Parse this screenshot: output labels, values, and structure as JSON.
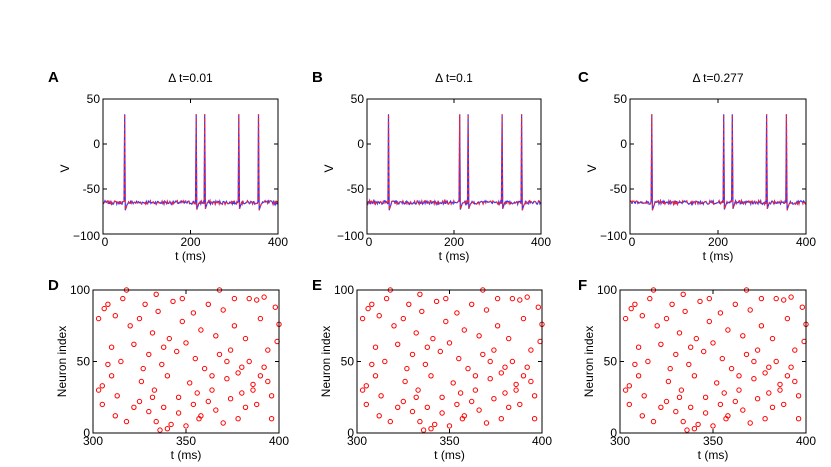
{
  "figure": {
    "panel_labels": [
      "A",
      "B",
      "C",
      "D",
      "E",
      "F"
    ]
  },
  "chart_data": [
    {
      "id": "A",
      "type": "line",
      "title": "Δ t=0.01",
      "xlabel": "t (ms)",
      "ylabel": "V",
      "xlim": [
        0,
        400
      ],
      "ylim": [
        -100,
        50
      ],
      "xticks": [
        "0",
        "200",
        "400"
      ],
      "yticks": [
        "50",
        "0",
        "-50",
        "−100"
      ],
      "legend": "none",
      "series": [
        {
          "name": "blue trace",
          "color": "#3333ff",
          "style": "solid",
          "spike_times": [
            50,
            213,
            232,
            310,
            356
          ]
        },
        {
          "name": "red trace",
          "color": "#ff2222",
          "style": "dashed",
          "spike_times": [
            50,
            213,
            232,
            310,
            356
          ]
        }
      ],
      "baseline": -65,
      "spike_peak": 33
    },
    {
      "id": "B",
      "type": "line",
      "title": "Δ t=0.1",
      "xlabel": "t (ms)",
      "ylabel": "V",
      "xlim": [
        0,
        400
      ],
      "ylim": [
        -100,
        50
      ],
      "xticks": [
        "0",
        "200",
        "400"
      ],
      "yticks": [
        "50",
        "0",
        "-50",
        "−100"
      ],
      "legend": "none",
      "series": [
        {
          "name": "blue trace",
          "color": "#3333ff",
          "style": "solid",
          "spike_times": [
            50,
            213,
            232,
            310,
            356
          ]
        },
        {
          "name": "red trace",
          "color": "#ff2222",
          "style": "dashed",
          "spike_times": [
            50,
            213,
            232,
            310,
            356
          ]
        }
      ],
      "baseline": -65,
      "spike_peak": 33
    },
    {
      "id": "C",
      "type": "line",
      "title": "Δ t=0.277",
      "xlabel": "t (ms)",
      "ylabel": "V",
      "xlim": [
        0,
        400
      ],
      "ylim": [
        -100,
        50
      ],
      "xticks": [
        "0",
        "200",
        "400"
      ],
      "yticks": [
        "50",
        "0",
        "-50",
        "−100"
      ],
      "legend": "none",
      "series": [
        {
          "name": "blue trace",
          "color": "#3333ff",
          "style": "solid",
          "spike_times": [
            50,
            213,
            232,
            310,
            356
          ]
        },
        {
          "name": "red trace",
          "color": "#ff2222",
          "style": "dashed",
          "spike_times": [
            50,
            213,
            232,
            310,
            356
          ]
        }
      ],
      "baseline": -65,
      "spike_peak": 33
    },
    {
      "id": "D",
      "type": "scatter",
      "xlabel": "t (ms)",
      "ylabel": "Neuron index",
      "xlim": [
        300,
        400
      ],
      "ylim": [
        0,
        100
      ],
      "xticks": [
        "300",
        "350",
        "400"
      ],
      "yticks": [
        "100",
        "50",
        "0"
      ],
      "marker": "open circle",
      "color": "#ff0000",
      "points": [
        [
          303,
          80
        ],
        [
          306,
          87
        ],
        [
          308,
          90
        ],
        [
          310,
          60
        ],
        [
          312,
          82
        ],
        [
          303,
          30
        ],
        [
          305,
          33
        ],
        [
          308,
          48
        ],
        [
          312,
          12
        ],
        [
          305,
          20
        ],
        [
          315,
          50
        ],
        [
          318,
          100
        ],
        [
          320,
          75
        ],
        [
          322,
          62
        ],
        [
          325,
          80
        ],
        [
          327,
          45
        ],
        [
          328,
          90
        ],
        [
          330,
          55
        ],
        [
          332,
          70
        ],
        [
          333,
          30
        ],
        [
          335,
          85
        ],
        [
          337,
          48
        ],
        [
          338,
          60
        ],
        [
          340,
          40
        ],
        [
          341,
          66
        ],
        [
          343,
          92
        ],
        [
          345,
          57
        ],
        [
          346,
          25
        ],
        [
          348,
          78
        ],
        [
          350,
          63
        ],
        [
          352,
          35
        ],
        [
          354,
          84
        ],
        [
          355,
          52
        ],
        [
          357,
          10
        ],
        [
          358,
          72
        ],
        [
          360,
          45
        ],
        [
          362,
          90
        ],
        [
          364,
          30
        ],
        [
          366,
          68
        ],
        [
          368,
          55
        ],
        [
          370,
          86
        ],
        [
          372,
          38
        ],
        [
          374,
          58
        ],
        [
          376,
          75
        ],
        [
          378,
          42
        ],
        [
          380,
          28
        ],
        [
          382,
          66
        ],
        [
          384,
          50
        ],
        [
          386,
          34
        ],
        [
          388,
          93
        ],
        [
          390,
          80
        ],
        [
          392,
          95
        ],
        [
          394,
          58
        ],
        [
          396,
          26
        ],
        [
          398,
          88
        ],
        [
          400,
          76
        ],
        [
          325,
          22
        ],
        [
          330,
          15
        ],
        [
          334,
          8
        ],
        [
          338,
          18
        ],
        [
          342,
          6
        ],
        [
          346,
          14
        ],
        [
          350,
          5
        ],
        [
          354,
          20
        ],
        [
          358,
          12
        ],
        [
          362,
          22
        ],
        [
          366,
          16
        ],
        [
          370,
          7
        ],
        [
          374,
          24
        ],
        [
          378,
          10
        ],
        [
          382,
          18
        ],
        [
          386,
          30
        ],
        [
          390,
          40
        ],
        [
          394,
          36
        ],
        [
          310,
          40
        ],
        [
          313,
          26
        ],
        [
          318,
          8
        ],
        [
          322,
          18
        ],
        [
          326,
          36
        ],
        [
          332,
          25
        ],
        [
          336,
          2
        ],
        [
          340,
          3
        ],
        [
          356,
          28
        ],
        [
          364,
          40
        ],
        [
          372,
          50
        ],
        [
          380,
          46
        ],
        [
          388,
          20
        ],
        [
          392,
          46
        ],
        [
          396,
          10
        ],
        [
          399,
          64
        ],
        [
          316,
          94
        ],
        [
          334,
          97
        ],
        [
          348,
          94
        ],
        [
          368,
          100
        ],
        [
          376,
          94
        ],
        [
          384,
          94
        ]
      ]
    },
    {
      "id": "E",
      "type": "scatter",
      "xlabel": "t (ms)",
      "ylabel": "Neuron index",
      "xlim": [
        300,
        400
      ],
      "ylim": [
        0,
        100
      ],
      "xticks": [
        "300",
        "350",
        "400"
      ],
      "yticks": [
        "100",
        "50",
        "0"
      ],
      "marker": "open circle",
      "color": "#ff0000",
      "points": [
        [
          303,
          80
        ],
        [
          306,
          87
        ],
        [
          308,
          90
        ],
        [
          310,
          60
        ],
        [
          312,
          82
        ],
        [
          303,
          30
        ],
        [
          305,
          33
        ],
        [
          308,
          48
        ],
        [
          312,
          12
        ],
        [
          305,
          20
        ],
        [
          315,
          50
        ],
        [
          318,
          100
        ],
        [
          320,
          75
        ],
        [
          322,
          62
        ],
        [
          325,
          80
        ],
        [
          327,
          45
        ],
        [
          328,
          90
        ],
        [
          330,
          55
        ],
        [
          332,
          70
        ],
        [
          333,
          30
        ],
        [
          335,
          85
        ],
        [
          337,
          48
        ],
        [
          338,
          60
        ],
        [
          340,
          40
        ],
        [
          341,
          66
        ],
        [
          343,
          92
        ],
        [
          345,
          57
        ],
        [
          346,
          25
        ],
        [
          348,
          78
        ],
        [
          350,
          63
        ],
        [
          352,
          35
        ],
        [
          354,
          84
        ],
        [
          355,
          52
        ],
        [
          357,
          10
        ],
        [
          358,
          72
        ],
        [
          360,
          45
        ],
        [
          362,
          90
        ],
        [
          364,
          30
        ],
        [
          366,
          68
        ],
        [
          368,
          55
        ],
        [
          370,
          86
        ],
        [
          372,
          38
        ],
        [
          374,
          58
        ],
        [
          376,
          75
        ],
        [
          378,
          42
        ],
        [
          380,
          28
        ],
        [
          382,
          66
        ],
        [
          384,
          50
        ],
        [
          386,
          34
        ],
        [
          388,
          93
        ],
        [
          390,
          80
        ],
        [
          392,
          95
        ],
        [
          394,
          58
        ],
        [
          396,
          26
        ],
        [
          398,
          88
        ],
        [
          400,
          76
        ],
        [
          325,
          22
        ],
        [
          330,
          15
        ],
        [
          334,
          8
        ],
        [
          338,
          18
        ],
        [
          342,
          6
        ],
        [
          346,
          14
        ],
        [
          350,
          5
        ],
        [
          354,
          20
        ],
        [
          358,
          12
        ],
        [
          362,
          22
        ],
        [
          366,
          16
        ],
        [
          370,
          7
        ],
        [
          374,
          24
        ],
        [
          378,
          10
        ],
        [
          382,
          18
        ],
        [
          386,
          30
        ],
        [
          390,
          40
        ],
        [
          394,
          36
        ],
        [
          310,
          40
        ],
        [
          313,
          26
        ],
        [
          318,
          8
        ],
        [
          322,
          18
        ],
        [
          326,
          36
        ],
        [
          332,
          25
        ],
        [
          336,
          2
        ],
        [
          340,
          3
        ],
        [
          356,
          28
        ],
        [
          364,
          40
        ],
        [
          372,
          50
        ],
        [
          380,
          46
        ],
        [
          388,
          20
        ],
        [
          392,
          46
        ],
        [
          396,
          10
        ],
        [
          399,
          64
        ],
        [
          316,
          94
        ],
        [
          334,
          97
        ],
        [
          348,
          94
        ],
        [
          368,
          100
        ],
        [
          376,
          94
        ],
        [
          384,
          94
        ]
      ]
    },
    {
      "id": "F",
      "type": "scatter",
      "xlabel": "t (ms)",
      "ylabel": "Neuron index",
      "xlim": [
        300,
        400
      ],
      "ylim": [
        0,
        100
      ],
      "xticks": [
        "300",
        "350",
        "400"
      ],
      "yticks": [
        "100",
        "50",
        "0"
      ],
      "marker": "open circle",
      "color": "#ff0000",
      "points": [
        [
          303,
          80
        ],
        [
          306,
          87
        ],
        [
          308,
          90
        ],
        [
          310,
          60
        ],
        [
          312,
          82
        ],
        [
          303,
          30
        ],
        [
          305,
          33
        ],
        [
          308,
          48
        ],
        [
          312,
          12
        ],
        [
          305,
          20
        ],
        [
          315,
          50
        ],
        [
          318,
          100
        ],
        [
          320,
          75
        ],
        [
          322,
          62
        ],
        [
          325,
          80
        ],
        [
          327,
          45
        ],
        [
          328,
          90
        ],
        [
          330,
          55
        ],
        [
          332,
          70
        ],
        [
          333,
          30
        ],
        [
          335,
          85
        ],
        [
          337,
          48
        ],
        [
          338,
          60
        ],
        [
          340,
          40
        ],
        [
          341,
          66
        ],
        [
          343,
          92
        ],
        [
          345,
          57
        ],
        [
          346,
          25
        ],
        [
          348,
          78
        ],
        [
          350,
          63
        ],
        [
          352,
          35
        ],
        [
          354,
          84
        ],
        [
          355,
          52
        ],
        [
          357,
          10
        ],
        [
          358,
          72
        ],
        [
          360,
          45
        ],
        [
          362,
          90
        ],
        [
          364,
          30
        ],
        [
          366,
          68
        ],
        [
          368,
          55
        ],
        [
          370,
          86
        ],
        [
          372,
          38
        ],
        [
          374,
          58
        ],
        [
          376,
          75
        ],
        [
          378,
          42
        ],
        [
          380,
          28
        ],
        [
          382,
          66
        ],
        [
          384,
          50
        ],
        [
          386,
          34
        ],
        [
          388,
          93
        ],
        [
          390,
          80
        ],
        [
          392,
          95
        ],
        [
          394,
          58
        ],
        [
          396,
          26
        ],
        [
          398,
          88
        ],
        [
          400,
          76
        ],
        [
          325,
          22
        ],
        [
          330,
          15
        ],
        [
          334,
          8
        ],
        [
          338,
          18
        ],
        [
          342,
          6
        ],
        [
          346,
          14
        ],
        [
          350,
          5
        ],
        [
          354,
          20
        ],
        [
          358,
          12
        ],
        [
          362,
          22
        ],
        [
          366,
          16
        ],
        [
          370,
          7
        ],
        [
          374,
          24
        ],
        [
          378,
          10
        ],
        [
          382,
          18
        ],
        [
          386,
          30
        ],
        [
          390,
          40
        ],
        [
          394,
          36
        ],
        [
          310,
          40
        ],
        [
          313,
          26
        ],
        [
          318,
          8
        ],
        [
          322,
          18
        ],
        [
          326,
          36
        ],
        [
          332,
          25
        ],
        [
          336,
          2
        ],
        [
          340,
          3
        ],
        [
          356,
          28
        ],
        [
          364,
          40
        ],
        [
          372,
          50
        ],
        [
          380,
          46
        ],
        [
          388,
          20
        ],
        [
          392,
          46
        ],
        [
          396,
          10
        ],
        [
          399,
          64
        ],
        [
          316,
          94
        ],
        [
          334,
          97
        ],
        [
          348,
          94
        ],
        [
          368,
          100
        ],
        [
          376,
          94
        ],
        [
          384,
          94
        ]
      ]
    }
  ]
}
